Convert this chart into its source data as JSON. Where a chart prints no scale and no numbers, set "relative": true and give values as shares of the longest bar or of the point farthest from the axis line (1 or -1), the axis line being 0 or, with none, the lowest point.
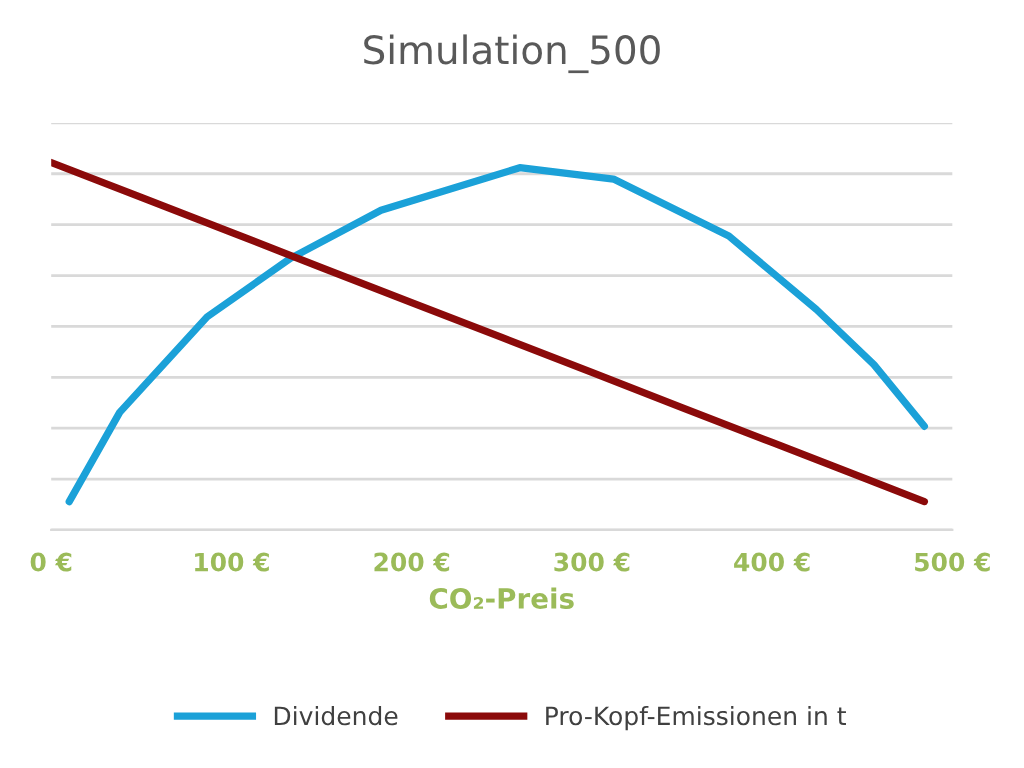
{
  "chart_data": {
    "type": "line",
    "title": "Simulation_500",
    "xlabel": "CO₂-Preis",
    "relative": true,
    "xlim": [
      0,
      500
    ],
    "xticks": [
      {
        "value": 0,
        "label": "0 €"
      },
      {
        "value": 100,
        "label": "100 €"
      },
      {
        "value": 200,
        "label": "200 €"
      },
      {
        "value": 300,
        "label": "300 €"
      },
      {
        "value": 400,
        "label": "400 €"
      },
      {
        "value": 500,
        "label": "500 €"
      }
    ],
    "series": [
      {
        "name": "Dividende",
        "color": "#1ba1d8",
        "x": [
          10,
          38,
          86.5,
          133,
          183,
          260,
          312,
          376,
          424.6,
          456.5,
          484.5
        ],
        "values": [
          0.077,
          0.32,
          0.58,
          0.74,
          0.87,
          0.986,
          0.955,
          0.8,
          0.6,
          0.45,
          0.282
        ]
      },
      {
        "name": "Pro-Kopf-Emissionen in t",
        "color": "#8b0a0a",
        "x": [
          0,
          50,
          100,
          150,
          200,
          250,
          300,
          350,
          400,
          450,
          484.5
        ],
        "values": [
          1,
          0.905,
          0.81,
          0.714,
          0.619,
          0.524,
          0.429,
          0.333,
          0.238,
          0.143,
          0.077
        ]
      }
    ],
    "grid": "y",
    "legend": "bottom",
    "marker": "none",
    "line_style": "solid"
  }
}
